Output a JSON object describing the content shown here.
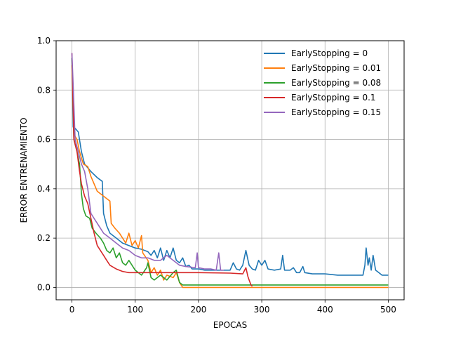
{
  "chart_data": {
    "type": "line",
    "title": "",
    "xlabel": "EPOCAS",
    "ylabel": "ERROR ENTRENAMIENTO",
    "xlim": [
      -25,
      525
    ],
    "ylim": [
      -0.05,
      1.0
    ],
    "xticks": [
      0,
      100,
      200,
      300,
      400,
      500
    ],
    "yticks": [
      0.0,
      0.2,
      0.4,
      0.6,
      0.8,
      1.0
    ],
    "xtick_labels": [
      "0",
      "100",
      "200",
      "300",
      "400",
      "500"
    ],
    "ytick_labels": [
      "0.0",
      "0.2",
      "0.4",
      "0.6",
      "0.8",
      "1.0"
    ],
    "grid": true,
    "legend_position": "top-right",
    "series": [
      {
        "name": "EarlyStopping = 0",
        "color": "#1f77b4",
        "points": [
          [
            0,
            0.93
          ],
          [
            2,
            0.65
          ],
          [
            5,
            0.645
          ],
          [
            10,
            0.63
          ],
          [
            15,
            0.55
          ],
          [
            20,
            0.5
          ],
          [
            30,
            0.47
          ],
          [
            40,
            0.445
          ],
          [
            48,
            0.43
          ],
          [
            50,
            0.3
          ],
          [
            55,
            0.25
          ],
          [
            60,
            0.22
          ],
          [
            70,
            0.2
          ],
          [
            80,
            0.18
          ],
          [
            90,
            0.17
          ],
          [
            100,
            0.16
          ],
          [
            110,
            0.155
          ],
          [
            120,
            0.145
          ],
          [
            125,
            0.13
          ],
          [
            130,
            0.15
          ],
          [
            135,
            0.12
          ],
          [
            140,
            0.16
          ],
          [
            145,
            0.11
          ],
          [
            150,
            0.15
          ],
          [
            155,
            0.12
          ],
          [
            160,
            0.16
          ],
          [
            165,
            0.11
          ],
          [
            170,
            0.1
          ],
          [
            175,
            0.12
          ],
          [
            180,
            0.085
          ],
          [
            185,
            0.09
          ],
          [
            190,
            0.075
          ],
          [
            200,
            0.075
          ],
          [
            210,
            0.07
          ],
          [
            220,
            0.07
          ],
          [
            230,
            0.07
          ],
          [
            240,
            0.07
          ],
          [
            250,
            0.07
          ],
          [
            255,
            0.1
          ],
          [
            260,
            0.075
          ],
          [
            265,
            0.07
          ],
          [
            270,
            0.09
          ],
          [
            275,
            0.15
          ],
          [
            280,
            0.09
          ],
          [
            285,
            0.075
          ],
          [
            290,
            0.07
          ],
          [
            295,
            0.11
          ],
          [
            300,
            0.09
          ],
          [
            305,
            0.11
          ],
          [
            310,
            0.075
          ],
          [
            320,
            0.07
          ],
          [
            330,
            0.075
          ],
          [
            333,
            0.13
          ],
          [
            336,
            0.07
          ],
          [
            345,
            0.07
          ],
          [
            350,
            0.08
          ],
          [
            355,
            0.06
          ],
          [
            360,
            0.06
          ],
          [
            365,
            0.085
          ],
          [
            368,
            0.06
          ],
          [
            380,
            0.055
          ],
          [
            400,
            0.055
          ],
          [
            420,
            0.05
          ],
          [
            440,
            0.05
          ],
          [
            460,
            0.05
          ],
          [
            463,
            0.09
          ],
          [
            465,
            0.16
          ],
          [
            468,
            0.09
          ],
          [
            470,
            0.12
          ],
          [
            473,
            0.07
          ],
          [
            476,
            0.13
          ],
          [
            480,
            0.07
          ],
          [
            485,
            0.06
          ],
          [
            490,
            0.05
          ],
          [
            500,
            0.05
          ]
        ]
      },
      {
        "name": "EarlyStopping = 0.01",
        "color": "#ff7f0e",
        "points": [
          [
            0,
            0.9
          ],
          [
            3,
            0.62
          ],
          [
            8,
            0.6
          ],
          [
            12,
            0.55
          ],
          [
            18,
            0.5
          ],
          [
            25,
            0.49
          ],
          [
            30,
            0.45
          ],
          [
            35,
            0.42
          ],
          [
            40,
            0.39
          ],
          [
            50,
            0.37
          ],
          [
            55,
            0.36
          ],
          [
            60,
            0.35
          ],
          [
            62,
            0.26
          ],
          [
            68,
            0.24
          ],
          [
            75,
            0.22
          ],
          [
            80,
            0.2
          ],
          [
            85,
            0.18
          ],
          [
            90,
            0.22
          ],
          [
            95,
            0.17
          ],
          [
            100,
            0.19
          ],
          [
            105,
            0.16
          ],
          [
            110,
            0.21
          ],
          [
            112,
            0.14
          ],
          [
            120,
            0.11
          ],
          [
            125,
            0.06
          ],
          [
            130,
            0.08
          ],
          [
            135,
            0.05
          ],
          [
            140,
            0.07
          ],
          [
            145,
            0.03
          ],
          [
            150,
            0.05
          ],
          [
            160,
            0.04
          ],
          [
            165,
            0.06
          ],
          [
            170,
            0.02
          ],
          [
            175,
            0.0
          ],
          [
            200,
            0.0
          ],
          [
            300,
            0.0
          ],
          [
            400,
            0.0
          ],
          [
            500,
            0.0
          ]
        ]
      },
      {
        "name": "EarlyStopping = 0.08",
        "color": "#2ca02c",
        "points": [
          [
            0,
            0.93
          ],
          [
            3,
            0.6
          ],
          [
            8,
            0.55
          ],
          [
            12,
            0.5
          ],
          [
            15,
            0.38
          ],
          [
            18,
            0.32
          ],
          [
            22,
            0.29
          ],
          [
            28,
            0.28
          ],
          [
            32,
            0.24
          ],
          [
            38,
            0.22
          ],
          [
            45,
            0.2
          ],
          [
            50,
            0.18
          ],
          [
            55,
            0.15
          ],
          [
            60,
            0.14
          ],
          [
            65,
            0.16
          ],
          [
            70,
            0.12
          ],
          [
            75,
            0.14
          ],
          [
            80,
            0.1
          ],
          [
            85,
            0.09
          ],
          [
            90,
            0.11
          ],
          [
            100,
            0.07
          ],
          [
            110,
            0.05
          ],
          [
            118,
            0.08
          ],
          [
            120,
            0.1
          ],
          [
            125,
            0.04
          ],
          [
            130,
            0.03
          ],
          [
            140,
            0.05
          ],
          [
            150,
            0.03
          ],
          [
            160,
            0.06
          ],
          [
            165,
            0.07
          ],
          [
            170,
            0.02
          ],
          [
            175,
            0.01
          ],
          [
            200,
            0.01
          ],
          [
            300,
            0.01
          ],
          [
            400,
            0.01
          ],
          [
            500,
            0.01
          ]
        ]
      },
      {
        "name": "EarlyStopping = 0.1",
        "color": "#d62728",
        "points": [
          [
            0,
            0.95
          ],
          [
            3,
            0.6
          ],
          [
            8,
            0.55
          ],
          [
            12,
            0.47
          ],
          [
            15,
            0.42
          ],
          [
            20,
            0.37
          ],
          [
            25,
            0.34
          ],
          [
            30,
            0.28
          ],
          [
            35,
            0.22
          ],
          [
            40,
            0.17
          ],
          [
            45,
            0.15
          ],
          [
            50,
            0.13
          ],
          [
            55,
            0.11
          ],
          [
            60,
            0.09
          ],
          [
            70,
            0.075
          ],
          [
            80,
            0.065
          ],
          [
            90,
            0.06
          ],
          [
            100,
            0.06
          ],
          [
            150,
            0.06
          ],
          [
            200,
            0.06
          ],
          [
            250,
            0.058
          ],
          [
            270,
            0.055
          ],
          [
            275,
            0.08
          ],
          [
            278,
            0.045
          ],
          [
            280,
            0.03
          ],
          [
            283,
            0.01
          ],
          [
            285,
            0.005
          ]
        ]
      },
      {
        "name": "EarlyStopping = 0.15",
        "color": "#9467bd",
        "points": [
          [
            0,
            0.95
          ],
          [
            2,
            0.82
          ],
          [
            5,
            0.6
          ],
          [
            10,
            0.55
          ],
          [
            15,
            0.5
          ],
          [
            20,
            0.47
          ],
          [
            25,
            0.4
          ],
          [
            30,
            0.3
          ],
          [
            40,
            0.26
          ],
          [
            50,
            0.22
          ],
          [
            60,
            0.2
          ],
          [
            70,
            0.18
          ],
          [
            80,
            0.16
          ],
          [
            90,
            0.15
          ],
          [
            100,
            0.13
          ],
          [
            110,
            0.12
          ],
          [
            120,
            0.12
          ],
          [
            130,
            0.11
          ],
          [
            140,
            0.11
          ],
          [
            150,
            0.13
          ],
          [
            160,
            0.11
          ],
          [
            170,
            0.09
          ],
          [
            180,
            0.085
          ],
          [
            195,
            0.08
          ],
          [
            198,
            0.14
          ],
          [
            200,
            0.08
          ],
          [
            210,
            0.075
          ],
          [
            220,
            0.075
          ],
          [
            228,
            0.07
          ],
          [
            232,
            0.14
          ],
          [
            235,
            0.07
          ],
          [
            240,
            0.07
          ]
        ]
      }
    ]
  }
}
